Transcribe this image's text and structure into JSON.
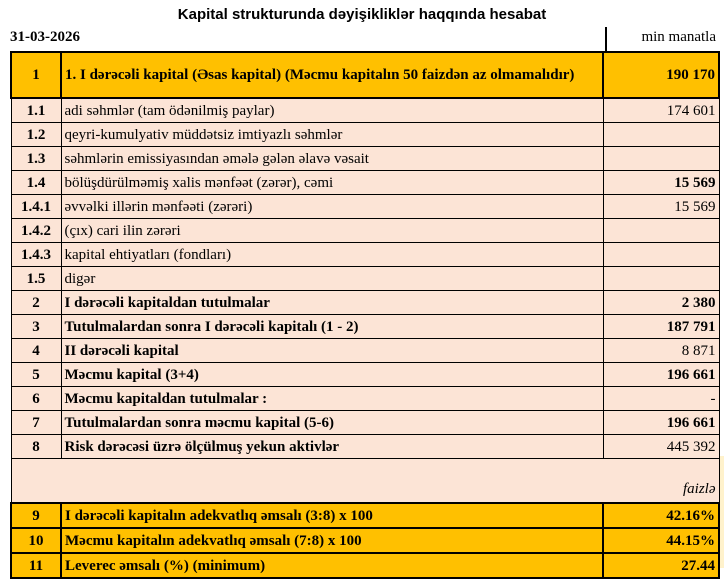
{
  "title": "Kapital strukturunda dəyişikliklər haqqında hesabat",
  "date": "31-03-2026",
  "unit": "min manatla",
  "percent_note": "faizlə",
  "rows": [
    {
      "no": "1",
      "label": "1. I dərəcəli kapital (Əsas kapital) (Məcmu kapitalın 50 faizdən  az olmamalıdır)",
      "value": "190 170"
    },
    {
      "no": "1.1",
      "label": "adi səhmlər (tam ödənilmiş paylar)",
      "value": "174 601"
    },
    {
      "no": "1.2",
      "label": "qeyri-kumulyativ müddətsiz imtiyazlı səhmlər",
      "value": ""
    },
    {
      "no": "1.3",
      "label": "səhmlərin emissiyasından əmələ gələn  əlavə vəsait",
      "value": ""
    },
    {
      "no": "1.4",
      "label": "bölüşdürülməmiş xalis mənfəət (zərər), cəmi",
      "value": "15 569"
    },
    {
      "no": "1.4.1",
      "label": "əvvəlki illərin mənfəəti (zərəri)",
      "value": "15 569"
    },
    {
      "no": "1.4.2",
      "label": "(çıx) cari ilin zərəri",
      "value": ""
    },
    {
      "no": "1.4.3",
      "label": "kapital ehtiyatları (fondları)",
      "value": ""
    },
    {
      "no": "1.5",
      "label": "digər",
      "value": ""
    },
    {
      "no": "2",
      "label": "I dərəcəli kapitaldan  tutulmalar",
      "value": "2 380"
    },
    {
      "no": "3",
      "label": "Tutulmalardan  sonra I dərəcəli kapitalı (1 - 2)",
      "value": "187 791"
    },
    {
      "no": "4",
      "label": "II dərəcəli  kapital",
      "value": "8 871"
    },
    {
      "no": "5",
      "label": "Məcmu kapital (3+4)",
      "value": "196 661"
    },
    {
      "no": "6",
      "label": "Məcmu kapitaldan tutulmalar :",
      "value": "-"
    },
    {
      "no": "7",
      "label": "Tutulmalardan sonra məcmu kapital (5-6)",
      "value": "196 661"
    },
    {
      "no": "8",
      "label": "Risk dərəcəsi üzrə ölçülmuş  yekun aktivlər",
      "value": "445 392"
    }
  ],
  "ratios": [
    {
      "no": "9",
      "label": "I dərəcəli  kapitalın  adekvatlıq əmsalı (3:8) x 100",
      "value": "42.16%"
    },
    {
      "no": "10",
      "label": "Məcmu kapitalın  adekvatlıq  əmsalı (7:8) x 100",
      "value": "44.15%"
    },
    {
      "no": "11",
      "label": " Leverec əmsalı (%) (minimum)",
      "value": "27.44"
    }
  ],
  "colors": {
    "highlight": "#FFC000",
    "row": "#FCE4D6"
  }
}
